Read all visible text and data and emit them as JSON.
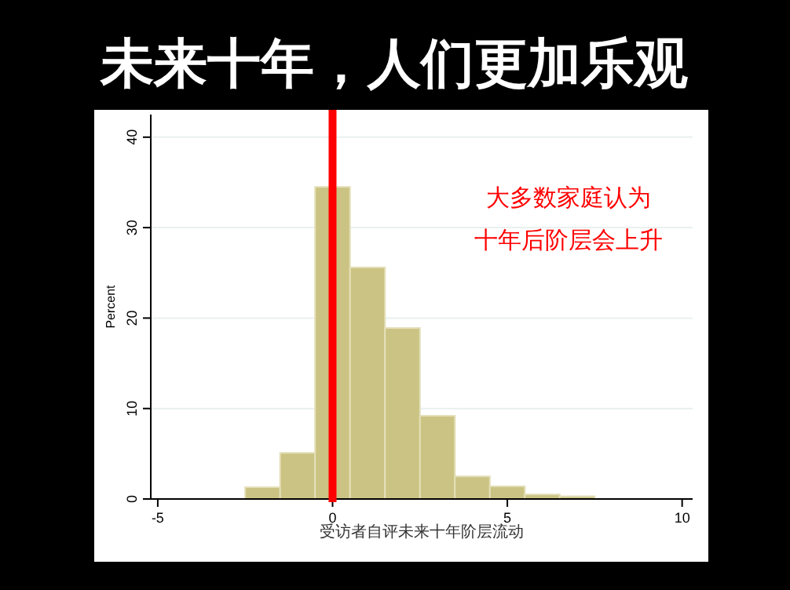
{
  "chart_data": {
    "type": "histogram",
    "title": "未来十年，人们更加乐观",
    "xlabel": "受访者自评未来十年阶层流动",
    "ylabel": "Percent",
    "bins": [
      -2.5,
      -1.5,
      -0.5,
      0.5,
      1.5,
      2.5,
      3.5,
      4.5,
      5.5,
      6.5,
      7.5
    ],
    "values": [
      1.3,
      5.1,
      34.5,
      25.6,
      18.9,
      9.2,
      2.5,
      1.4,
      0.5,
      0.3
    ],
    "color": "#cbc383",
    "xlim": [
      -5.2,
      10.3
    ],
    "xticks": [
      -5,
      0,
      5,
      10
    ],
    "ylim": [
      0,
      42.5
    ],
    "yticks": [
      0,
      10,
      20,
      30,
      40
    ],
    "grid": "y",
    "ref_lines": [
      {
        "axis": "x",
        "value": 0,
        "color": "#ff0000"
      }
    ],
    "annotations": [
      "大多数家庭认为",
      "十年后阶层会上升"
    ]
  }
}
